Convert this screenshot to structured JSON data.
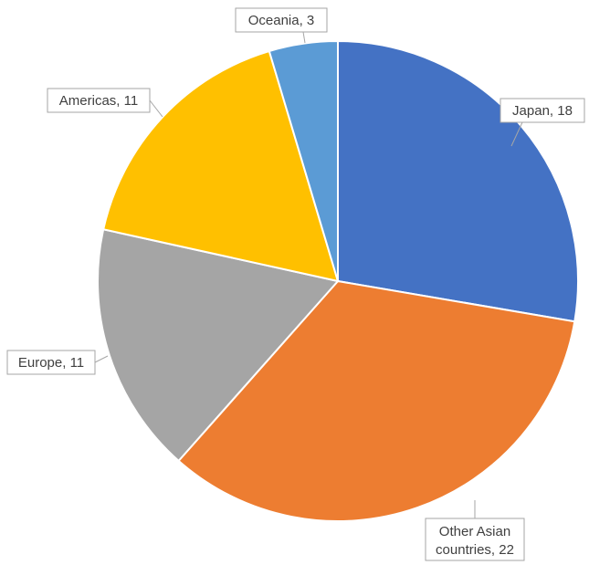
{
  "chart_data": {
    "type": "pie",
    "title": "",
    "legend": "none",
    "start_angle_deg": 0,
    "direction": "clockwise",
    "slices": [
      {
        "label": "Japan",
        "value": 18,
        "color": "#4472C4",
        "data_label": "Japan, 18"
      },
      {
        "label": "Other Asian countries",
        "value": 22,
        "color": "#ED7D31",
        "data_label": "Other Asian countries, 22"
      },
      {
        "label": "Europe",
        "value": 11,
        "color": "#A5A5A5",
        "data_label": "Europe, 11"
      },
      {
        "label": "Americas",
        "value": 11,
        "color": "#FFC000",
        "data_label": "Americas, 11"
      },
      {
        "label": "Oceania",
        "value": 3,
        "color": "#5B9BD5",
        "data_label": "Oceania, 3"
      }
    ]
  }
}
